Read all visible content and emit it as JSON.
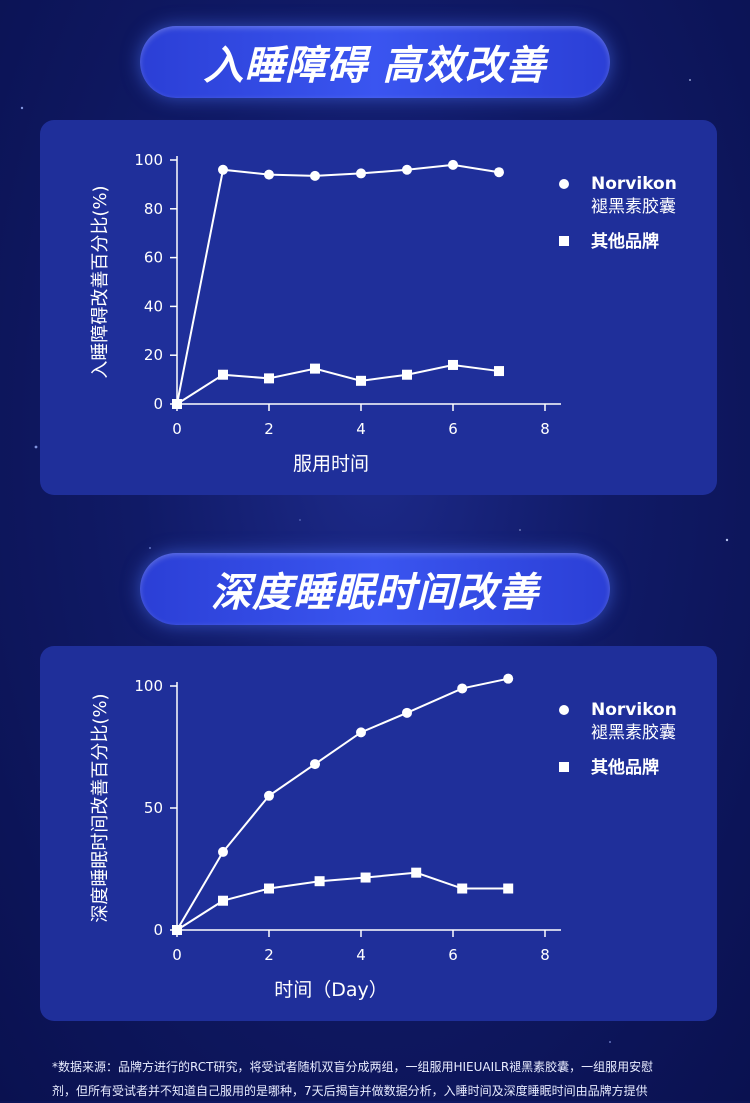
{
  "banners": {
    "top": "入睡障碍 高效改善",
    "middle": "深度睡眠时间改善"
  },
  "chart_data": [
    {
      "type": "line",
      "title": "",
      "xlabel": "服用时间",
      "ylabel": "入睡障碍改善百分比(%)",
      "xlim": [
        0,
        8
      ],
      "ylim": [
        0,
        100
      ],
      "xticks": [
        "0",
        "2",
        "4",
        "6",
        "8"
      ],
      "yticks": [
        "0",
        "20",
        "40",
        "60",
        "80",
        "100"
      ],
      "legend_position": "right",
      "series": [
        {
          "name": "Norvikon",
          "name_line2": "褪黑素胶囊",
          "marker": "circle",
          "x": [
            0,
            1,
            2,
            3,
            4,
            5,
            6,
            7
          ],
          "y": [
            0,
            96,
            94,
            93.5,
            94.5,
            96,
            98,
            95
          ]
        },
        {
          "name": "其他品牌",
          "marker": "square",
          "x": [
            0,
            1,
            2,
            3,
            4,
            5,
            6,
            7
          ],
          "y": [
            0,
            12,
            10.5,
            14.5,
            9.5,
            12,
            16,
            13.5
          ]
        }
      ]
    },
    {
      "type": "line",
      "title": "",
      "xlabel": "时间（Day）",
      "ylabel": "深度睡眠时间改善百分比(%)",
      "xlim": [
        0,
        8
      ],
      "ylim": [
        0,
        100
      ],
      "xticks": [
        "0",
        "2",
        "4",
        "6",
        "8"
      ],
      "yticks": [
        "0",
        "50",
        "100"
      ],
      "legend_position": "right",
      "series": [
        {
          "name": "Norvikon",
          "name_line2": "褪黑素胶囊",
          "marker": "circle",
          "x": [
            0,
            1,
            2,
            3,
            4,
            5,
            6.2,
            7.2
          ],
          "y": [
            0,
            32,
            55,
            68,
            81,
            89,
            99,
            103
          ]
        },
        {
          "name": "其他品牌",
          "marker": "square",
          "x": [
            0,
            1,
            2,
            3.1,
            4.1,
            5.2,
            6.2,
            7.2
          ],
          "y": [
            0,
            12,
            17,
            20,
            21.5,
            23.5,
            17,
            17
          ]
        }
      ]
    }
  ],
  "footnote": {
    "line1": "*数据来源：品牌方进行的RCT研究，将受试者随机双盲分成两组，一组服用HIEUAILR褪黑素胶囊，一组服用安慰",
    "line2": "剂，但所有受试者并不知道自己服用的是哪种，7天后揭盲并做数据分析，入睡时间及深度睡眠时间由品牌方提供"
  }
}
